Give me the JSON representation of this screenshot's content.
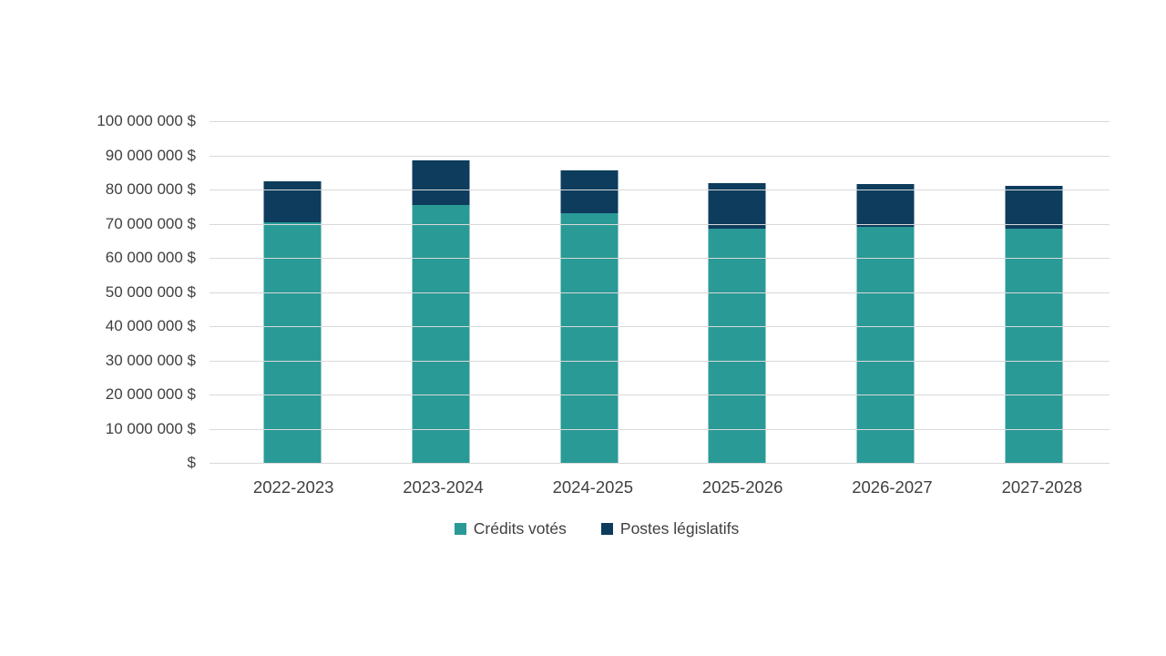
{
  "chart_data": {
    "type": "bar",
    "stacked": true,
    "title": "",
    "xlabel": "",
    "ylabel": "",
    "categories": [
      "2022-2023",
      "2023-2024",
      "2024-2025",
      "2025-2026",
      "2026-2027",
      "2027-2028"
    ],
    "series": [
      {
        "name": "Crédits votés",
        "color": "#2a9a96",
        "values": [
          70500000,
          75500000,
          73000000,
          68500000,
          69000000,
          68500000
        ]
      },
      {
        "name": "Postes législatifs",
        "color": "#0d3c5d",
        "values": [
          12000000,
          13000000,
          12500000,
          13500000,
          12500000,
          12500000
        ]
      }
    ],
    "ylim": [
      0,
      100000000
    ],
    "yticks": [
      {
        "value": 0,
        "label": "$"
      },
      {
        "value": 10000000,
        "label": "10 000 000 $"
      },
      {
        "value": 20000000,
        "label": "20 000 000 $"
      },
      {
        "value": 30000000,
        "label": "30 000 000 $"
      },
      {
        "value": 40000000,
        "label": "40 000 000 $"
      },
      {
        "value": 50000000,
        "label": "50 000 000 $"
      },
      {
        "value": 60000000,
        "label": "60 000 000 $"
      },
      {
        "value": 70000000,
        "label": "70 000 000 $"
      },
      {
        "value": 80000000,
        "label": "80 000 000 $"
      },
      {
        "value": 90000000,
        "label": "90 000 000 $"
      },
      {
        "value": 100000000,
        "label": "100 000 000 $"
      }
    ],
    "grid": true,
    "legend_position": "bottom",
    "colors": {
      "gridline": "#d9d9d9",
      "text": "#404040",
      "background": "#ffffff"
    }
  }
}
